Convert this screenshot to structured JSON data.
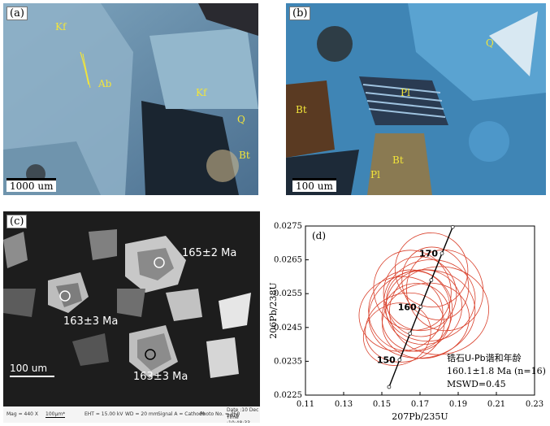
{
  "panels": {
    "a": {
      "label": "(a)",
      "minerals": [
        "Kf",
        "Ab",
        "Kf",
        "Q",
        "Bt"
      ],
      "scale": "1000 um"
    },
    "b": {
      "label": "(b)",
      "minerals": [
        "Q",
        "Bt",
        "Pl",
        "Bt",
        "Pl"
      ],
      "scale": "100 um"
    },
    "c": {
      "label": "(c)",
      "ages": [
        "165±2 Ma",
        "163±3 Ma",
        "163±3 Ma"
      ],
      "scale": "100 um",
      "footer": {
        "mag": "Mag = 440 X",
        "scale": "100µm*",
        "eht": "EHT = 15.00 kV",
        "wd": "WD = 20 mm",
        "signal": "Signal A = Cathodo",
        "photo": "Photo No. = 250",
        "date": "Date :10 Dec 2016",
        "time": "Time :10:48:33"
      }
    }
  },
  "chart_data": {
    "type": "scatter",
    "panel_label": "(d)",
    "xlabel": "207Pb/235U",
    "ylabel": "206Pb/238U",
    "xlim": [
      0.11,
      0.23
    ],
    "ylim": [
      0.0225,
      0.0275
    ],
    "xticks": [
      "0.11",
      "0.13",
      "0.15",
      "0.17",
      "0.19",
      "0.21",
      "0.23"
    ],
    "yticks": [
      "0.0225",
      "0.0235",
      "0.0245",
      "0.0255",
      "0.0265",
      "0.0275"
    ],
    "concordia_labels": [
      "150",
      "160",
      "170"
    ],
    "concordia_points": [
      {
        "t": 145,
        "x": 0.1538,
        "y": 0.02274
      },
      {
        "t": 150,
        "x": 0.1593,
        "y": 0.02354
      },
      {
        "t": 155,
        "x": 0.1648,
        "y": 0.02432
      },
      {
        "t": 160,
        "x": 0.1703,
        "y": 0.02511
      },
      {
        "t": 165,
        "x": 0.1759,
        "y": 0.0259
      },
      {
        "t": 170,
        "x": 0.1815,
        "y": 0.02669
      },
      {
        "t": 175,
        "x": 0.1871,
        "y": 0.02747
      }
    ],
    "ellipses": [
      {
        "x": 0.172,
        "y": 0.0251,
        "rx": 0.02,
        "ry": 0.0011,
        "rot": 20
      },
      {
        "x": 0.168,
        "y": 0.0248,
        "rx": 0.018,
        "ry": 0.001,
        "rot": 25
      },
      {
        "x": 0.165,
        "y": 0.025,
        "rx": 0.022,
        "ry": 0.0012,
        "rot": 15
      },
      {
        "x": 0.17,
        "y": 0.0255,
        "rx": 0.019,
        "ry": 0.0011,
        "rot": 30
      },
      {
        "x": 0.175,
        "y": 0.0253,
        "rx": 0.024,
        "ry": 0.0012,
        "rot": 10
      },
      {
        "x": 0.162,
        "y": 0.0245,
        "rx": 0.021,
        "ry": 0.001,
        "rot": 20
      },
      {
        "x": 0.178,
        "y": 0.0258,
        "rx": 0.017,
        "ry": 0.0011,
        "rot": 25
      },
      {
        "x": 0.158,
        "y": 0.0243,
        "rx": 0.018,
        "ry": 0.0009,
        "rot": 25
      },
      {
        "x": 0.18,
        "y": 0.025,
        "rx": 0.026,
        "ry": 0.0013,
        "rot": 5
      },
      {
        "x": 0.166,
        "y": 0.0256,
        "rx": 0.02,
        "ry": 0.0012,
        "rot": 30
      },
      {
        "x": 0.173,
        "y": 0.0247,
        "rx": 0.023,
        "ry": 0.0011,
        "rot": 15
      },
      {
        "x": 0.169,
        "y": 0.0252,
        "rx": 0.016,
        "ry": 0.001,
        "rot": 35
      },
      {
        "x": 0.176,
        "y": 0.0262,
        "rx": 0.019,
        "ry": 0.0011,
        "rot": 20
      },
      {
        "x": 0.16,
        "y": 0.0249,
        "rx": 0.022,
        "ry": 0.0011,
        "rot": 10
      },
      {
        "x": 0.183,
        "y": 0.0256,
        "rx": 0.02,
        "ry": 0.0012,
        "rot": 15
      },
      {
        "x": 0.171,
        "y": 0.0249,
        "rx": 0.028,
        "ry": 0.0013,
        "rot": 10
      }
    ],
    "annotation": {
      "line1": "锆石U-Pb谐和年龄",
      "line2": "160.1±1.8 Ma (n=16)",
      "line3": "MSWD=0.45"
    },
    "colors": {
      "ellipse": "#d9402b",
      "concordia": "#000000"
    }
  }
}
